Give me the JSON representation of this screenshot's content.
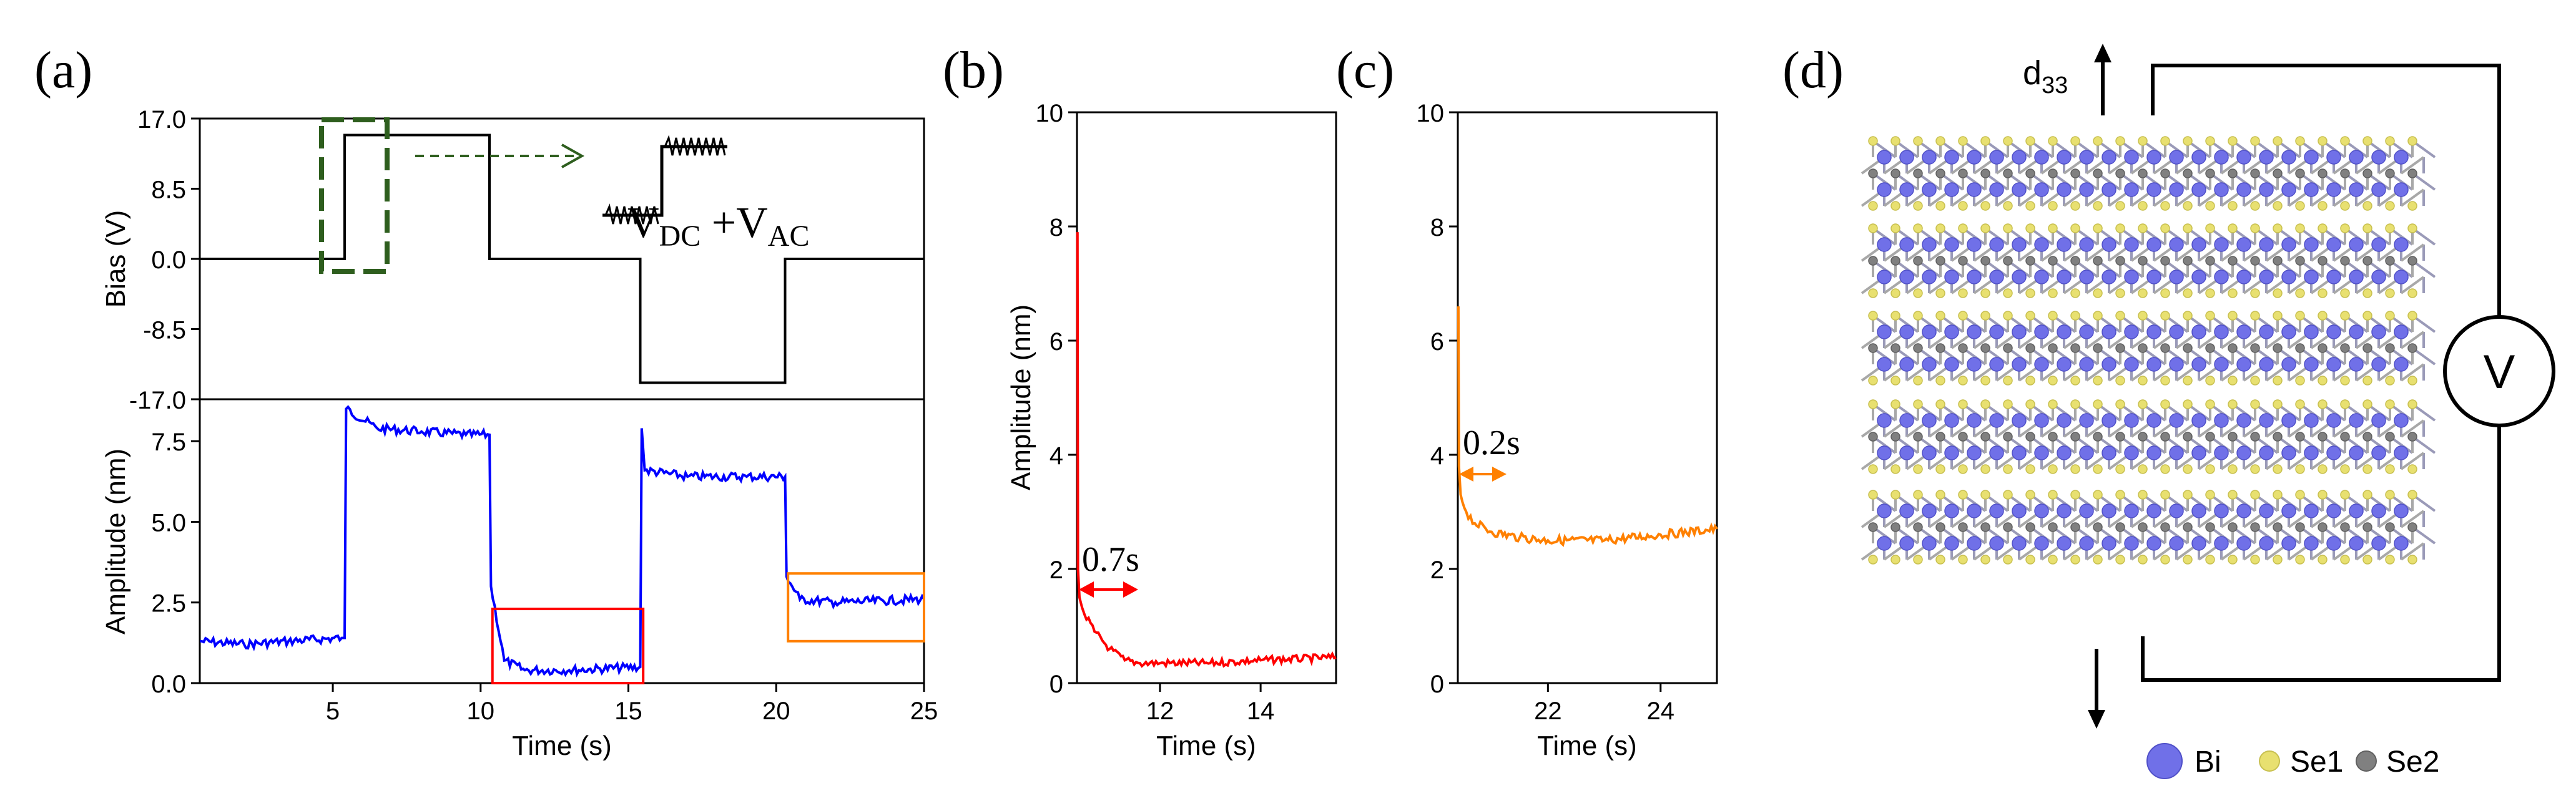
{
  "panels": {
    "a": {
      "label": "(a)",
      "vdc": "V",
      "vdc_sub": "DC",
      "vac": " +V",
      "vac_sub": "AC"
    },
    "b": {
      "label": "(b)",
      "annotation": "0.7s"
    },
    "c": {
      "label": "(c)",
      "annotation": "0.2s"
    },
    "d": {
      "label": "(d)",
      "d33": "d",
      "d33_sub": "33",
      "voltmeter": "V"
    }
  },
  "legend_d": [
    {
      "label": "Bi",
      "color": "#7070e8"
    },
    {
      "label": "Se1",
      "color": "#e8e070"
    },
    {
      "label": "Se2",
      "color": "#808080"
    }
  ],
  "colors": {
    "bias": "#000000",
    "amp_a": "#0000ff",
    "amp_b": "#ff0000",
    "amp_c": "#ff8000",
    "dashed": "#2e5e1e",
    "box_b": "#ff0000",
    "box_c": "#ff8000"
  },
  "chart_data": [
    {
      "id": "a_bias",
      "type": "line",
      "title": "",
      "xlabel": "",
      "ylabel": "Bias (V)",
      "xlim": [
        0.5,
        25
      ],
      "ylim": [
        -17,
        17
      ],
      "yticks": [
        17,
        8.5,
        0,
        -8.5,
        -17
      ],
      "ytick_labels": [
        "17.0",
        "8.5",
        "0.0",
        "-8.5",
        "-17.0"
      ],
      "x": [
        0.5,
        5.4,
        5.4,
        5.9,
        5.9,
        10.3,
        10.3,
        15.4,
        15.4,
        20.3,
        20.3,
        25
      ],
      "y": [
        0,
        0,
        15,
        15,
        15,
        15,
        0,
        0,
        -15,
        -15,
        0,
        0
      ]
    },
    {
      "id": "a_amp",
      "type": "line",
      "title": "",
      "xlabel": "Time (s)",
      "ylabel": "Amplitude (nm)",
      "xlim": [
        0.5,
        25
      ],
      "ylim": [
        0,
        8.8
      ],
      "xticks": [
        5,
        10,
        15,
        20,
        25
      ],
      "xtick_labels": [
        "5",
        "10",
        "15",
        "20",
        "25"
      ],
      "yticks": [
        0,
        2.5,
        5,
        7.5
      ],
      "ytick_labels": [
        "0.0",
        "2.5",
        "5.0",
        "7.5"
      ],
      "x": [
        0.5,
        2,
        3.5,
        5.3,
        5.4,
        5.45,
        6.5,
        8,
        9.5,
        10.3,
        10.35,
        10.8,
        11.5,
        13,
        15.4,
        15.45,
        15.55,
        17,
        19,
        20.3,
        20.35,
        20.8,
        22,
        25
      ],
      "y": [
        1.3,
        1.2,
        1.3,
        1.4,
        1.4,
        8.5,
        7.9,
        7.8,
        7.7,
        7.7,
        3.0,
        0.7,
        0.4,
        0.4,
        0.5,
        7.9,
        6.6,
        6.4,
        6.4,
        6.4,
        3.3,
        2.6,
        2.5,
        2.6
      ]
    },
    {
      "id": "b",
      "type": "line",
      "title": "",
      "xlabel": "Time (s)",
      "ylabel": "Amplitude (nm)",
      "xlim": [
        10.35,
        15.5
      ],
      "ylim": [
        0,
        10
      ],
      "xticks": [
        12,
        14
      ],
      "xtick_labels": [
        "12",
        "14"
      ],
      "yticks": [
        0,
        2,
        4,
        6,
        8,
        10
      ],
      "ytick_labels": [
        "0",
        "2",
        "4",
        "6",
        "8",
        "10"
      ],
      "x": [
        10.36,
        10.37,
        10.4,
        10.5,
        10.7,
        11.0,
        11.3,
        11.6,
        12,
        13,
        14,
        15.5
      ],
      "y": [
        7.9,
        2.0,
        1.5,
        1.2,
        0.9,
        0.6,
        0.4,
        0.35,
        0.35,
        0.35,
        0.4,
        0.45
      ]
    },
    {
      "id": "c",
      "type": "line",
      "title": "",
      "xlabel": "Time (s)",
      "ylabel": "",
      "xlim": [
        20.4,
        25
      ],
      "ylim": [
        0,
        10
      ],
      "xticks": [
        22,
        24
      ],
      "xtick_labels": [
        "22",
        "24"
      ],
      "yticks": [
        0,
        2,
        4,
        6,
        8,
        10
      ],
      "ytick_labels": [
        "0",
        "2",
        "4",
        "6",
        "8",
        "10"
      ],
      "x": [
        20.41,
        20.42,
        20.45,
        20.55,
        20.7,
        21.0,
        21.5,
        22,
        23,
        24,
        25
      ],
      "y": [
        6.6,
        3.8,
        3.3,
        3.0,
        2.8,
        2.65,
        2.55,
        2.5,
        2.5,
        2.6,
        2.7
      ]
    }
  ]
}
